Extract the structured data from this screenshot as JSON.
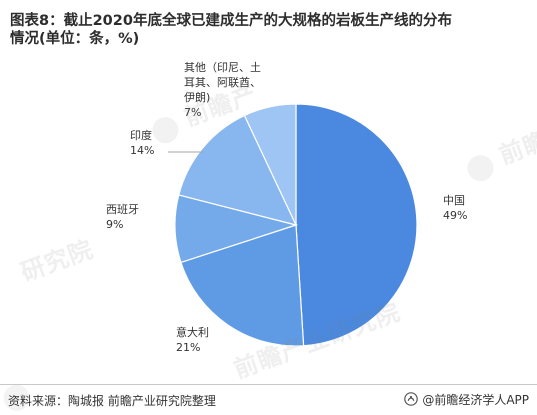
{
  "header": {
    "title": "图表8：截止2020年底全球已建成生产的大规格的岩板生产线的分布\n情况(单位：条，%)"
  },
  "watermarks": {
    "text_1": "前瞻产",
    "text_2": "研究院",
    "text_3": "前瞻产业研究院",
    "text_4": "前瞻"
  },
  "chart_data": {
    "type": "pie",
    "categories": [
      "中国",
      "意大利",
      "西班牙",
      "印度",
      "其他（印尼、土耳其、阿联酋、伊朗)"
    ],
    "label_lines": [
      [
        "中国"
      ],
      [
        "意大利"
      ],
      [
        "西班牙"
      ],
      [
        "印度"
      ],
      [
        "其他（印尼、土",
        "耳其、阿联酋、",
        "伊朗)"
      ]
    ],
    "values": [
      49,
      21,
      9,
      14,
      7
    ],
    "value_labels": [
      "49%",
      "21%",
      "9%",
      "14%",
      "7%"
    ],
    "colors": [
      "#4a89df",
      "#5f9be4",
      "#75aaea",
      "#88b6ee",
      "#9ec5f3"
    ],
    "start_angle_deg": 0,
    "direction": "clockwise",
    "title": "图表8：截止2020年底全球已建成生产的大规格的岩板生产线的分布情况(单位：条，%)"
  },
  "footer": {
    "source": "资料来源：陶城报 前瞻产业研究院整理",
    "brand": "@前瞻经济学人APP",
    "brand_icon": "qianzhan-logo-icon"
  }
}
